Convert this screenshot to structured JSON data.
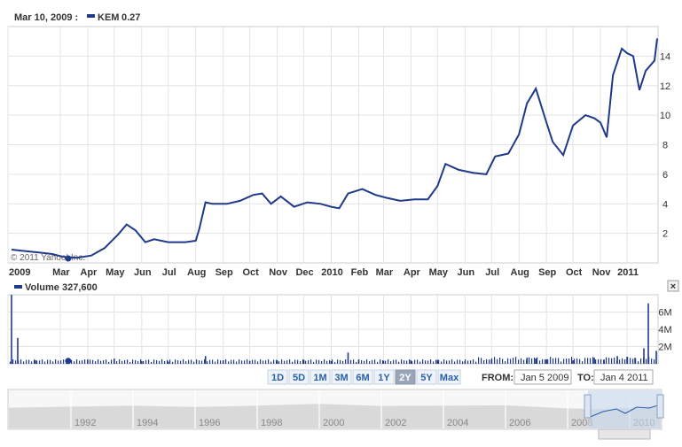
{
  "header": {
    "date_label": "Mar 10, 2009 :",
    "symbol": "KEM",
    "value": "0.27"
  },
  "volume_header": {
    "label": "Volume",
    "value": "327,600"
  },
  "watermark": "© 2011 Yahoo! Inc.",
  "controls": {
    "zoom_buttons": [
      "1D",
      "5D",
      "1M",
      "3M",
      "6M",
      "1Y",
      "2Y",
      "5Y",
      "Max"
    ],
    "selected_zoom": "2Y",
    "from_label": "FROM:",
    "from_value": "Jan 5 2009",
    "to_label": "TO:",
    "to_value": "Jan 4 2011"
  },
  "colors": {
    "line": "#1f3a8a",
    "volume": "#1f3a8a",
    "grid": "#e3e3e3",
    "navigator": "#d9d9d9",
    "selection": "#c8d9ee"
  },
  "chart_data": [
    {
      "type": "line",
      "series": [
        {
          "name": "KEM",
          "x": [
            "2009-01-05",
            "2009-01-20",
            "2009-02-05",
            "2009-02-20",
            "2009-03-05",
            "2009-03-20",
            "2009-04-05",
            "2009-04-20",
            "2009-05-05",
            "2009-05-15",
            "2009-05-25",
            "2009-06-05",
            "2009-06-15",
            "2009-07-01",
            "2009-07-20",
            "2009-08-01",
            "2009-08-05",
            "2009-08-12",
            "2009-08-20",
            "2009-09-05",
            "2009-09-20",
            "2009-10-05",
            "2009-10-15",
            "2009-10-25",
            "2009-11-05",
            "2009-11-20",
            "2009-12-05",
            "2009-12-20",
            "2010-01-01",
            "2010-01-10",
            "2010-01-20",
            "2010-02-05",
            "2010-02-20",
            "2010-03-05",
            "2010-03-20",
            "2010-04-05",
            "2010-04-20",
            "2010-05-01",
            "2010-05-10",
            "2010-05-25",
            "2010-06-10",
            "2010-06-25",
            "2010-07-05",
            "2010-07-20",
            "2010-08-01",
            "2010-08-10",
            "2010-08-20",
            "2010-09-01",
            "2010-09-08",
            "2010-09-20",
            "2010-10-01",
            "2010-10-15",
            "2010-10-25",
            "2010-11-01",
            "2010-11-08",
            "2010-11-15",
            "2010-11-25",
            "2010-12-01",
            "2010-12-08",
            "2010-12-15",
            "2010-12-22",
            "2011-01-01",
            "2011-01-04"
          ],
          "values": [
            0.9,
            0.8,
            0.7,
            0.6,
            0.4,
            0.35,
            0.5,
            1.0,
            1.9,
            2.6,
            2.2,
            1.4,
            1.6,
            1.4,
            1.4,
            1.5,
            2.3,
            4.1,
            4.0,
            4.0,
            4.2,
            4.6,
            4.7,
            4.0,
            4.5,
            3.8,
            4.1,
            4.0,
            3.8,
            3.7,
            4.7,
            5.0,
            4.6,
            4.4,
            4.2,
            4.3,
            4.3,
            5.2,
            6.7,
            6.3,
            6.1,
            6.0,
            7.2,
            7.4,
            8.7,
            10.8,
            11.8,
            9.5,
            8.2,
            7.3,
            9.3,
            10.0,
            9.8,
            9.5,
            8.5,
            12.7,
            14.5,
            14.2,
            14.0,
            11.7,
            13.0,
            13.7,
            15.2
          ]
        }
      ],
      "x_tick_labels": [
        "2009",
        "Mar",
        "Apr",
        "May",
        "Jun",
        "Jul",
        "Aug",
        "Sep",
        "Oct",
        "Nov",
        "Dec",
        "2010",
        "Feb",
        "Mar",
        "Apr",
        "May",
        "Jun",
        "Jul",
        "Aug",
        "Sep",
        "Oct",
        "Nov",
        "2011"
      ],
      "y_tick_labels": [
        "2",
        "4",
        "6",
        "8",
        "10",
        "12",
        "14"
      ],
      "xlim": [
        "2009-01-01",
        "2011-01-05"
      ],
      "ylim": [
        0,
        16
      ],
      "grid": true
    },
    {
      "type": "bar",
      "series": [
        {
          "name": "Volume",
          "x": [
            "2009-01-05",
            "2009-01-12",
            "2009-02-01",
            "2009-03-10",
            "2009-04-01",
            "2009-05-01",
            "2009-06-01",
            "2009-07-01",
            "2009-08-12",
            "2009-09-01",
            "2009-10-01",
            "2009-11-01",
            "2009-12-01",
            "2010-01-01",
            "2010-01-20",
            "2010-02-01",
            "2010-03-01",
            "2010-04-01",
            "2010-05-01",
            "2010-06-01",
            "2010-07-01",
            "2010-08-10",
            "2010-08-20",
            "2010-09-01",
            "2010-10-01",
            "2010-10-25",
            "2010-11-05",
            "2010-11-20",
            "2010-12-01",
            "2010-12-10",
            "2010-12-20",
            "2010-12-25",
            "2011-01-03"
          ],
          "values": [
            8000000,
            3000000,
            400000,
            327600,
            500000,
            600000,
            300000,
            250000,
            900000,
            400000,
            350000,
            400000,
            450000,
            300000,
            1300000,
            500000,
            350000,
            400000,
            450000,
            300000,
            500000,
            700000,
            600000,
            500000,
            400000,
            700000,
            500000,
            900000,
            800000,
            700000,
            1800000,
            7000000,
            1500000
          ]
        }
      ],
      "y_tick_labels": [
        "2M",
        "4M",
        "6M"
      ],
      "ylim": [
        0,
        8000000
      ]
    },
    {
      "type": "area",
      "series": [
        {
          "name": "Navigator",
          "x": [
            1990,
            1992,
            1994,
            1996,
            1998,
            2000,
            2002,
            2004,
            2006,
            2008,
            2009,
            2010,
            2011
          ],
          "values": [
            6,
            6.3,
            6.6,
            6.2,
            6.6,
            7.1,
            6.5,
            6.6,
            6.7,
            5.8,
            5.6,
            6.0,
            6.4
          ]
        }
      ],
      "x_tick_labels": [
        "1992",
        "1994",
        "1996",
        "1998",
        "2000",
        "2002",
        "2004",
        "2006",
        "2008",
        "2010"
      ]
    }
  ]
}
